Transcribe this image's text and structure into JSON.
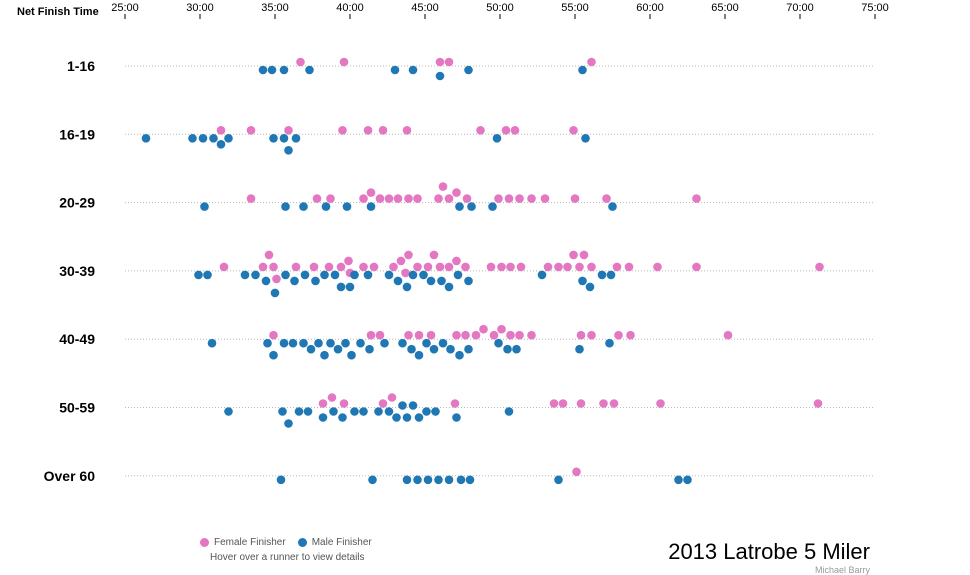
{
  "chart_data": {
    "type": "scatter",
    "title": "2013 Latrobe 5 Miler",
    "credit": "Michael Barry",
    "x_axis_label": "Net Finish Time",
    "x_ticks": [
      "25:00",
      "30:00",
      "35:00",
      "40:00",
      "45:00",
      "50:00",
      "55:00",
      "60:00",
      "65:00",
      "70:00",
      "75:00"
    ],
    "xlim_minutes": [
      25,
      75
    ],
    "categories": [
      "1-16",
      "16-19",
      "20-29",
      "30-39",
      "40-49",
      "50-59",
      "Over 60"
    ],
    "grid": true,
    "legend_position": "bottom-left",
    "hint": "Hover over a runner to view details",
    "series": [
      {
        "name": "Female Finisher",
        "color": "#e377c2",
        "points": [
          {
            "group": "1-16",
            "times": [
              36.7,
              39.6,
              46.0,
              46.6,
              56.1
            ]
          },
          {
            "group": "16-19",
            "times": [
              31.4,
              33.4,
              35.9,
              39.5,
              41.2,
              42.2,
              43.8,
              48.7,
              50.4,
              51.0,
              54.9
            ]
          },
          {
            "group": "20-29",
            "times": [
              33.4,
              37.8,
              38.7,
              40.9,
              41.4,
              42.0,
              42.6,
              43.2,
              43.9,
              44.5,
              45.9,
              46.2,
              46.6,
              47.1,
              47.8,
              49.9,
              50.6,
              51.3,
              52.1,
              53.0,
              55.0,
              57.1,
              63.1
            ]
          },
          {
            "group": "30-39",
            "times": [
              31.6,
              34.2,
              34.6,
              34.9,
              35.1,
              36.4,
              37.6,
              38.6,
              39.4,
              39.9,
              40.0,
              40.9,
              41.6,
              42.9,
              43.4,
              43.7,
              43.9,
              44.5,
              45.2,
              45.6,
              46.0,
              46.6,
              47.1,
              47.7,
              49.4,
              50.1,
              50.7,
              51.4,
              53.2,
              53.9,
              54.5,
              54.9,
              55.3,
              55.6,
              56.1,
              57.8,
              58.6,
              60.5,
              63.1,
              71.3
            ]
          },
          {
            "group": "40-49",
            "times": [
              34.9,
              41.4,
              42.0,
              43.9,
              44.6,
              45.4,
              47.1,
              47.7,
              48.4,
              48.9,
              49.6,
              50.1,
              50.7,
              51.3,
              52.1,
              55.4,
              56.1,
              57.9,
              58.7,
              65.2
            ]
          },
          {
            "group": "50-59",
            "times": [
              38.2,
              38.8,
              39.6,
              42.2,
              42.8,
              47.0,
              53.6,
              54.2,
              55.4,
              56.9,
              57.6,
              60.7,
              71.2
            ]
          },
          {
            "group": "Over 60",
            "times": [
              55.1
            ]
          }
        ]
      },
      {
        "name": "Male Finisher",
        "color": "#1f77b4",
        "points": [
          {
            "group": "1-16",
            "times": [
              34.2,
              34.8,
              35.6,
              37.3,
              43.0,
              44.2,
              46.0,
              47.9,
              55.5
            ]
          },
          {
            "group": "16-19",
            "times": [
              26.4,
              29.5,
              30.2,
              30.9,
              31.4,
              31.9,
              34.9,
              35.6,
              35.9,
              36.4,
              49.8,
              55.7
            ]
          },
          {
            "group": "20-29",
            "times": [
              30.3,
              35.7,
              36.9,
              38.4,
              39.8,
              41.4,
              47.3,
              48.1,
              49.5,
              57.5
            ]
          },
          {
            "group": "30-39",
            "times": [
              29.9,
              30.5,
              33.0,
              33.7,
              34.4,
              35.0,
              35.7,
              36.3,
              37.0,
              37.7,
              38.3,
              39.0,
              39.4,
              40.0,
              40.3,
              41.2,
              42.6,
              43.2,
              43.8,
              44.2,
              44.9,
              45.4,
              46.1,
              46.6,
              47.2,
              47.9,
              52.8,
              55.5,
              56.0,
              56.8,
              57.4
            ]
          },
          {
            "group": "40-49",
            "times": [
              30.8,
              34.5,
              34.9,
              35.6,
              36.2,
              36.9,
              37.4,
              37.9,
              38.3,
              38.7,
              39.2,
              39.7,
              40.1,
              40.7,
              41.3,
              42.3,
              43.5,
              44.1,
              44.6,
              45.1,
              45.6,
              46.2,
              46.7,
              47.3,
              47.9,
              49.9,
              50.5,
              51.1,
              55.3,
              57.3
            ]
          },
          {
            "group": "50-59",
            "times": [
              31.9,
              35.5,
              35.9,
              36.6,
              37.2,
              38.2,
              38.9,
              39.5,
              40.3,
              40.9,
              41.9,
              42.6,
              43.1,
              43.5,
              43.8,
              44.2,
              44.6,
              45.1,
              45.7,
              47.1,
              50.6
            ]
          },
          {
            "group": "Over 60",
            "times": [
              35.4,
              41.5,
              43.8,
              44.5,
              45.2,
              45.9,
              46.6,
              47.4,
              48.0,
              53.9,
              61.9,
              62.5
            ]
          }
        ]
      }
    ]
  }
}
